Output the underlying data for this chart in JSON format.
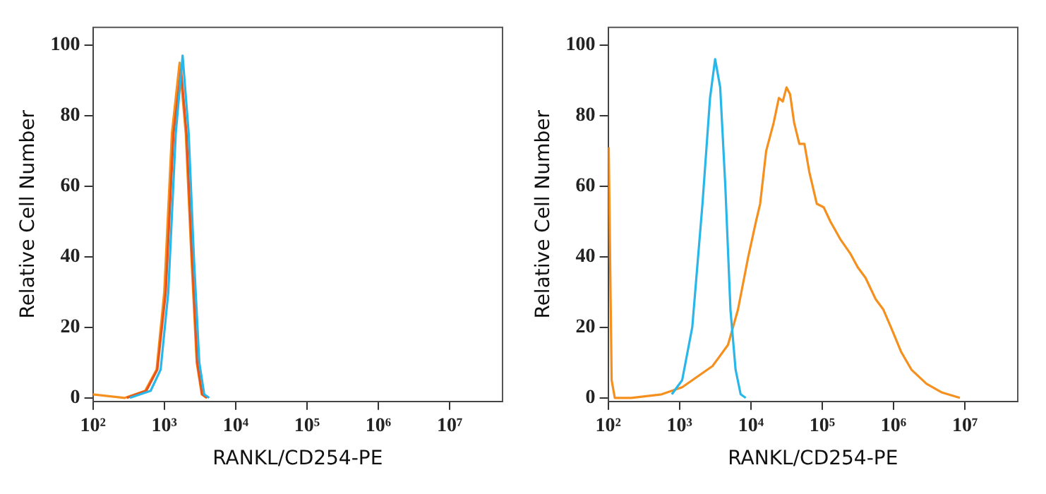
{
  "chart_data": [
    {
      "type": "line",
      "xlabel": "RANKL/CD254-PE",
      "ylabel": "Relative Cell Number",
      "log": "x",
      "grid": false,
      "legend": false,
      "marker": "none",
      "line_style": "solid",
      "xlim": [
        100,
        55000000
      ],
      "ylim": [
        -1,
        105
      ],
      "xticks": [
        {
          "value": 100,
          "label": "10²"
        },
        {
          "value": 1000,
          "label": "10³"
        },
        {
          "value": 10000,
          "label": "10⁴"
        },
        {
          "value": 100000,
          "label": "10⁵"
        },
        {
          "value": 1000000,
          "label": "10⁶"
        },
        {
          "value": 10000000,
          "label": "10⁷"
        }
      ],
      "yticks": [
        0,
        20,
        40,
        60,
        80,
        100
      ],
      "series": [
        {
          "color": "#29b6e8",
          "x": [
            330,
            645,
            890,
            1140,
            1450,
            1810,
            2200,
            2600,
            3100,
            3630,
            4260
          ],
          "values": [
            0,
            2,
            8,
            30,
            75,
            97,
            75,
            40,
            10,
            1,
            0
          ]
        },
        {
          "color": "#e8541c",
          "x": [
            300,
            560,
            800,
            1050,
            1350,
            1720,
            2050,
            2450,
            2900,
            3400,
            4000
          ],
          "values": [
            0,
            2,
            8,
            30,
            75,
            93,
            75,
            40,
            10,
            1,
            0
          ]
        },
        {
          "color": "#f5901e",
          "x": [
            100,
            280,
            540,
            780,
            1000,
            1280,
            1640,
            2000,
            2400,
            2850,
            3350,
            3900
          ],
          "values": [
            1,
            0,
            2,
            8,
            30,
            75,
            95,
            75,
            40,
            10,
            1,
            0
          ]
        }
      ]
    },
    {
      "type": "line",
      "xlabel": "RANKL/CD254-PE",
      "ylabel": "Relative Cell Number",
      "log": "x",
      "grid": false,
      "legend": false,
      "marker": "none",
      "line_style": "solid",
      "xlim": [
        100,
        55000000
      ],
      "ylim": [
        -1,
        105
      ],
      "xticks": [
        {
          "value": 100,
          "label": "10²"
        },
        {
          "value": 1000,
          "label": "10³"
        },
        {
          "value": 10000,
          "label": "10⁴"
        },
        {
          "value": 100000,
          "label": "10⁵"
        },
        {
          "value": 1000000,
          "label": "10⁶"
        },
        {
          "value": 10000000,
          "label": "10⁷"
        }
      ],
      "yticks": [
        0,
        20,
        40,
        60,
        80,
        100
      ],
      "series": [
        {
          "color": "#29b6e8",
          "x": [
            780,
            1090,
            1510,
            2100,
            2680,
            3160,
            3720,
            4390,
            5180,
            6110,
            7200,
            8480
          ],
          "values": [
            1,
            5,
            20,
            55,
            85,
            96,
            88,
            60,
            25,
            8,
            1,
            0
          ]
        },
        {
          "color": "#f5901e",
          "x": [
            102,
            112,
            124,
            210,
            560,
            1090,
            1780,
            2900,
            4780,
            6600,
            9200,
            11800,
            13500,
            16400,
            20900,
            24700,
            28000,
            31600,
            35500,
            40400,
            47800,
            56300,
            66000,
            84000,
            105000,
            130000,
            179000,
            246000,
            315000,
            405000,
            560000,
            720000,
            920000,
            1280000,
            1780000,
            2900000,
            4800000,
            8500000
          ],
          "values": [
            71,
            5,
            0,
            0,
            1,
            3,
            6,
            9,
            15,
            25,
            40,
            50,
            55,
            70,
            78,
            85,
            84,
            88,
            86,
            78,
            72,
            72,
            64,
            55,
            54,
            50,
            45,
            41,
            37,
            34,
            28,
            25,
            20,
            13,
            8,
            4,
            1.5,
            0
          ]
        }
      ]
    }
  ]
}
